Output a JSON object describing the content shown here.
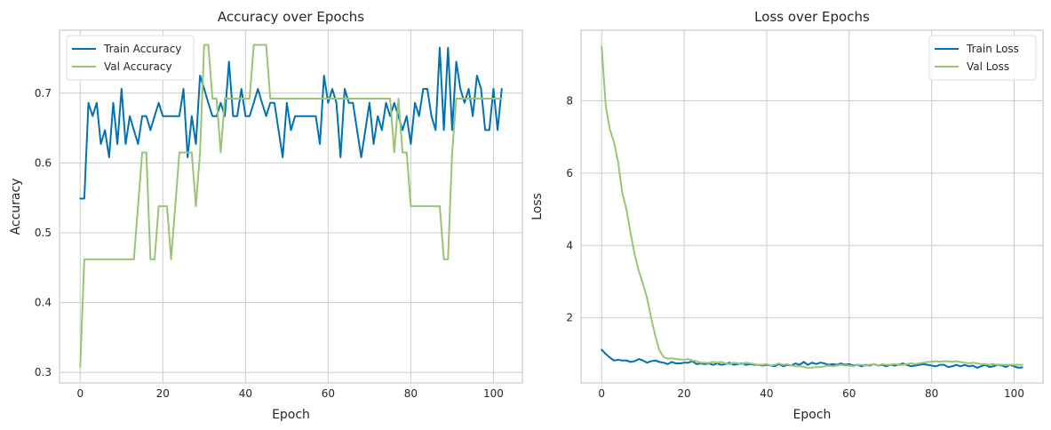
{
  "colors": {
    "train": "#0072B2",
    "val": "#9AC475",
    "grid": "#CCCCCC",
    "frame": "#CCCCCC",
    "legend_border": "#DDDDDD"
  },
  "chart_data": [
    {
      "type": "line",
      "title": "Accuracy over Epochs",
      "xlabel": "Epoch",
      "ylabel": "Accuracy",
      "xlim": [
        -5,
        107
      ],
      "ylim": [
        0.285,
        0.79
      ],
      "xticks": [
        0,
        20,
        40,
        60,
        80,
        100
      ],
      "yticks": [
        0.3,
        0.4,
        0.5,
        0.6,
        0.7
      ],
      "ytick_labels": [
        "0.3",
        "0.4",
        "0.5",
        "0.6",
        "0.7"
      ],
      "grid": true,
      "legend": "upper-left",
      "series": [
        {
          "name": "Train Accuracy",
          "color": "train",
          "x": [
            0,
            1,
            2,
            3,
            4,
            5,
            6,
            7,
            8,
            9,
            10,
            11,
            12,
            13,
            14,
            15,
            16,
            17,
            18,
            19,
            20,
            21,
            22,
            23,
            24,
            25,
            26,
            27,
            28,
            29,
            30,
            31,
            32,
            33,
            34,
            35,
            36,
            37,
            38,
            39,
            40,
            41,
            42,
            43,
            44,
            45,
            46,
            47,
            48,
            49,
            50,
            51,
            52,
            53,
            54,
            55,
            56,
            57,
            58,
            59,
            60,
            61,
            62,
            63,
            64,
            65,
            66,
            67,
            68,
            69,
            70,
            71,
            72,
            73,
            74,
            75,
            76,
            77,
            78,
            79,
            80,
            81,
            82,
            83,
            84,
            85,
            86,
            87,
            88,
            89,
            90,
            91,
            92,
            93,
            94,
            95,
            96,
            97,
            98,
            99,
            100,
            101,
            102
          ],
          "y": [
            0.549,
            0.549,
            0.686,
            0.667,
            0.686,
            0.627,
            0.647,
            0.608,
            0.686,
            0.627,
            0.706,
            0.627,
            0.667,
            0.647,
            0.627,
            0.667,
            0.667,
            0.647,
            0.667,
            0.686,
            0.667,
            0.667,
            0.667,
            0.667,
            0.667,
            0.706,
            0.608,
            0.667,
            0.627,
            0.725,
            0.706,
            0.686,
            0.667,
            0.667,
            0.686,
            0.667,
            0.745,
            0.667,
            0.667,
            0.706,
            0.667,
            0.667,
            0.686,
            0.706,
            0.686,
            0.667,
            0.686,
            0.686,
            0.647,
            0.608,
            0.686,
            0.647,
            0.667,
            0.667,
            0.667,
            0.667,
            0.667,
            0.667,
            0.627,
            0.725,
            0.686,
            0.706,
            0.686,
            0.608,
            0.706,
            0.686,
            0.686,
            0.647,
            0.608,
            0.647,
            0.686,
            0.627,
            0.667,
            0.647,
            0.686,
            0.667,
            0.686,
            0.667,
            0.647,
            0.667,
            0.627,
            0.686,
            0.667,
            0.706,
            0.706,
            0.667,
            0.647,
            0.765,
            0.647,
            0.765,
            0.647,
            0.745,
            0.706,
            0.686,
            0.706,
            0.667,
            0.725,
            0.706,
            0.647,
            0.647,
            0.706,
            0.647,
            0.706
          ]
        },
        {
          "name": "Val Accuracy",
          "color": "val",
          "x": [
            0,
            1,
            2,
            3,
            4,
            5,
            6,
            7,
            8,
            9,
            10,
            11,
            12,
            13,
            14,
            15,
            16,
            17,
            18,
            19,
            20,
            21,
            22,
            23,
            24,
            25,
            26,
            27,
            28,
            29,
            30,
            31,
            32,
            33,
            34,
            35,
            36,
            37,
            38,
            39,
            40,
            41,
            42,
            43,
            44,
            45,
            46,
            47,
            48,
            49,
            50,
            51,
            52,
            53,
            54,
            55,
            56,
            57,
            58,
            59,
            60,
            61,
            62,
            63,
            64,
            65,
            66,
            67,
            68,
            69,
            70,
            71,
            72,
            73,
            74,
            75,
            76,
            77,
            78,
            79,
            80,
            81,
            82,
            83,
            84,
            85,
            86,
            87,
            88,
            89,
            90,
            91,
            92,
            93,
            94,
            95,
            96,
            97,
            98,
            99,
            100,
            101,
            102
          ],
          "y": [
            0.308,
            0.462,
            0.462,
            0.462,
            0.462,
            0.462,
            0.462,
            0.462,
            0.462,
            0.462,
            0.462,
            0.462,
            0.462,
            0.462,
            0.538,
            0.615,
            0.615,
            0.462,
            0.462,
            0.538,
            0.538,
            0.538,
            0.462,
            0.538,
            0.615,
            0.615,
            0.615,
            0.615,
            0.538,
            0.615,
            0.769,
            0.769,
            0.692,
            0.692,
            0.615,
            0.692,
            0.692,
            0.692,
            0.692,
            0.692,
            0.692,
            0.692,
            0.769,
            0.769,
            0.769,
            0.769,
            0.692,
            0.692,
            0.692,
            0.692,
            0.692,
            0.692,
            0.692,
            0.692,
            0.692,
            0.692,
            0.692,
            0.692,
            0.692,
            0.692,
            0.692,
            0.692,
            0.692,
            0.692,
            0.692,
            0.692,
            0.692,
            0.692,
            0.692,
            0.692,
            0.692,
            0.692,
            0.692,
            0.692,
            0.692,
            0.692,
            0.615,
            0.692,
            0.615,
            0.615,
            0.538,
            0.538,
            0.538,
            0.538,
            0.538,
            0.538,
            0.538,
            0.538,
            0.462,
            0.462,
            0.615,
            0.692,
            0.692,
            0.692,
            0.692,
            0.692,
            0.692,
            0.692,
            0.692,
            0.692,
            0.692,
            0.692,
            0.692
          ]
        }
      ]
    },
    {
      "type": "line",
      "title": "Loss over Epochs",
      "xlabel": "Epoch",
      "ylabel": "Loss",
      "xlim": [
        -5,
        107
      ],
      "ylim": [
        0.2,
        9.95
      ],
      "xticks": [
        0,
        20,
        40,
        60,
        80,
        100
      ],
      "yticks": [
        2,
        4,
        6,
        8
      ],
      "ytick_labels": [
        "2",
        "4",
        "6",
        "8"
      ],
      "grid": true,
      "legend": "upper-right",
      "series": [
        {
          "name": "Train Loss",
          "color": "train",
          "x": [
            0,
            1,
            2,
            3,
            4,
            5,
            6,
            7,
            8,
            9,
            10,
            11,
            12,
            13,
            14,
            15,
            16,
            17,
            18,
            19,
            20,
            21,
            22,
            23,
            24,
            25,
            26,
            27,
            28,
            29,
            30,
            31,
            32,
            33,
            34,
            35,
            36,
            37,
            38,
            39,
            40,
            41,
            42,
            43,
            44,
            45,
            46,
            47,
            48,
            49,
            50,
            51,
            52,
            53,
            54,
            55,
            56,
            57,
            58,
            59,
            60,
            61,
            62,
            63,
            64,
            65,
            66,
            67,
            68,
            69,
            70,
            71,
            72,
            73,
            74,
            75,
            76,
            77,
            78,
            79,
            80,
            81,
            82,
            83,
            84,
            85,
            86,
            87,
            88,
            89,
            90,
            91,
            92,
            93,
            94,
            95,
            96,
            97,
            98,
            99,
            100,
            101,
            102
          ],
          "y": [
            1.12,
            1.0,
            0.9,
            0.82,
            0.84,
            0.82,
            0.82,
            0.78,
            0.8,
            0.86,
            0.82,
            0.76,
            0.8,
            0.82,
            0.78,
            0.76,
            0.72,
            0.78,
            0.74,
            0.74,
            0.76,
            0.76,
            0.8,
            0.72,
            0.74,
            0.72,
            0.74,
            0.7,
            0.74,
            0.7,
            0.72,
            0.76,
            0.7,
            0.72,
            0.74,
            0.7,
            0.72,
            0.7,
            0.7,
            0.68,
            0.7,
            0.68,
            0.66,
            0.72,
            0.66,
            0.7,
            0.68,
            0.74,
            0.7,
            0.78,
            0.7,
            0.76,
            0.72,
            0.76,
            0.74,
            0.7,
            0.72,
            0.7,
            0.74,
            0.7,
            0.72,
            0.68,
            0.7,
            0.66,
            0.7,
            0.68,
            0.72,
            0.68,
            0.7,
            0.66,
            0.7,
            0.68,
            0.7,
            0.74,
            0.7,
            0.66,
            0.68,
            0.7,
            0.72,
            0.7,
            0.68,
            0.66,
            0.7,
            0.7,
            0.64,
            0.66,
            0.7,
            0.66,
            0.7,
            0.66,
            0.68,
            0.62,
            0.66,
            0.7,
            0.64,
            0.66,
            0.7,
            0.68,
            0.64,
            0.7,
            0.66,
            0.62,
            0.63
          ]
        },
        {
          "name": "Val Loss",
          "color": "val",
          "x": [
            0,
            1,
            2,
            3,
            4,
            5,
            6,
            7,
            8,
            9,
            10,
            11,
            12,
            13,
            14,
            15,
            16,
            17,
            18,
            19,
            20,
            21,
            22,
            23,
            24,
            25,
            26,
            27,
            28,
            29,
            30,
            31,
            32,
            33,
            34,
            35,
            36,
            37,
            38,
            39,
            40,
            41,
            42,
            43,
            44,
            45,
            46,
            47,
            48,
            49,
            50,
            51,
            52,
            53,
            54,
            55,
            56,
            57,
            58,
            59,
            60,
            61,
            62,
            63,
            64,
            65,
            66,
            67,
            68,
            69,
            70,
            71,
            72,
            73,
            74,
            75,
            76,
            77,
            78,
            79,
            80,
            81,
            82,
            83,
            84,
            85,
            86,
            87,
            88,
            89,
            90,
            91,
            92,
            93,
            94,
            95,
            96,
            97,
            98,
            99,
            100,
            101,
            102
          ],
          "y": [
            9.5,
            7.85,
            7.2,
            6.85,
            6.3,
            5.45,
            5.0,
            4.35,
            3.75,
            3.3,
            2.95,
            2.55,
            2.0,
            1.5,
            1.1,
            0.92,
            0.87,
            0.88,
            0.86,
            0.85,
            0.84,
            0.86,
            0.82,
            0.8,
            0.76,
            0.76,
            0.75,
            0.78,
            0.76,
            0.78,
            0.74,
            0.72,
            0.76,
            0.74,
            0.72,
            0.76,
            0.74,
            0.72,
            0.7,
            0.7,
            0.72,
            0.68,
            0.7,
            0.74,
            0.7,
            0.72,
            0.68,
            0.66,
            0.66,
            0.64,
            0.62,
            0.62,
            0.64,
            0.64,
            0.66,
            0.68,
            0.66,
            0.68,
            0.7,
            0.68,
            0.68,
            0.66,
            0.7,
            0.7,
            0.68,
            0.7,
            0.72,
            0.68,
            0.72,
            0.7,
            0.7,
            0.72,
            0.7,
            0.7,
            0.72,
            0.74,
            0.72,
            0.74,
            0.76,
            0.78,
            0.78,
            0.8,
            0.78,
            0.8,
            0.8,
            0.78,
            0.8,
            0.78,
            0.76,
            0.74,
            0.76,
            0.74,
            0.72,
            0.72,
            0.7,
            0.72,
            0.7,
            0.7,
            0.7,
            0.7,
            0.7,
            0.7,
            0.7
          ]
        }
      ]
    }
  ]
}
